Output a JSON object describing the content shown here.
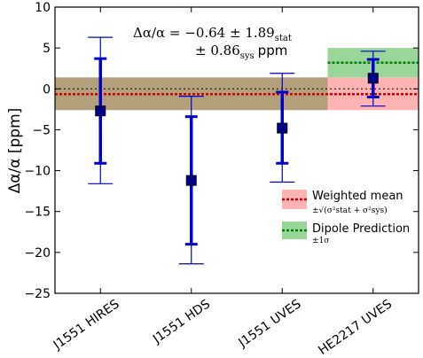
{
  "chart_data": {
    "type": "scatter",
    "ylabel": "Δα/α [ppm]",
    "ylim": [
      -25,
      10
    ],
    "yticks": [
      10,
      5,
      0,
      -5,
      -10,
      -15,
      -20,
      -25
    ],
    "categories": [
      "J1551 HIRES",
      "J1551 HDS",
      "J1551 UVES",
      "HE2217 UVES"
    ],
    "points": [
      {
        "category": "J1551 HIRES",
        "y": -2.7,
        "stat_err": [
          -9.1,
          3.7
        ],
        "total_err": [
          -11.6,
          6.3
        ]
      },
      {
        "category": "J1551 HDS",
        "y": -11.2,
        "stat_err": [
          -19.0,
          -3.4
        ],
        "total_err": [
          -21.4,
          -0.9
        ]
      },
      {
        "category": "J1551 UVES",
        "y": -4.8,
        "stat_err": [
          -9.1,
          -0.4
        ],
        "total_err": [
          -11.4,
          1.9
        ]
      },
      {
        "category": "HE2217 UVES",
        "y": 1.3,
        "stat_err": [
          -1.0,
          3.6
        ],
        "total_err": [
          -2.1,
          4.6
        ]
      }
    ],
    "weighted_mean": {
      "value": -0.64,
      "band": [
        -2.6,
        1.4
      ]
    },
    "dipole_prediction": {
      "value": 3.2,
      "band": [
        1.4,
        5.0
      ]
    },
    "overlap_band": [
      -2.6,
      1.4
    ],
    "legend": {
      "weighted_mean": "Weighted mean",
      "weighted_mean_sub": "±√(σ²stat + σ²sys)",
      "dipole": "Dipole Prediction",
      "dipole_sub": "±1σ"
    },
    "annotation": {
      "line1": "Δα/α = −0.64 ± 1.89",
      "line1_sub": "stat",
      "line2": "± 0.86",
      "line2_sub": "sys",
      "line2_unit": "ppm"
    },
    "colors": {
      "points": "#0000cc",
      "marker": "#00008b",
      "mean_line": "#cc0000",
      "mean_band": "#ffb3b3",
      "dipole_line": "#008000",
      "dipole_band": "#99d699",
      "overlap_band": "#b3a07a"
    },
    "grid": false,
    "legend_position": "lower-right"
  }
}
